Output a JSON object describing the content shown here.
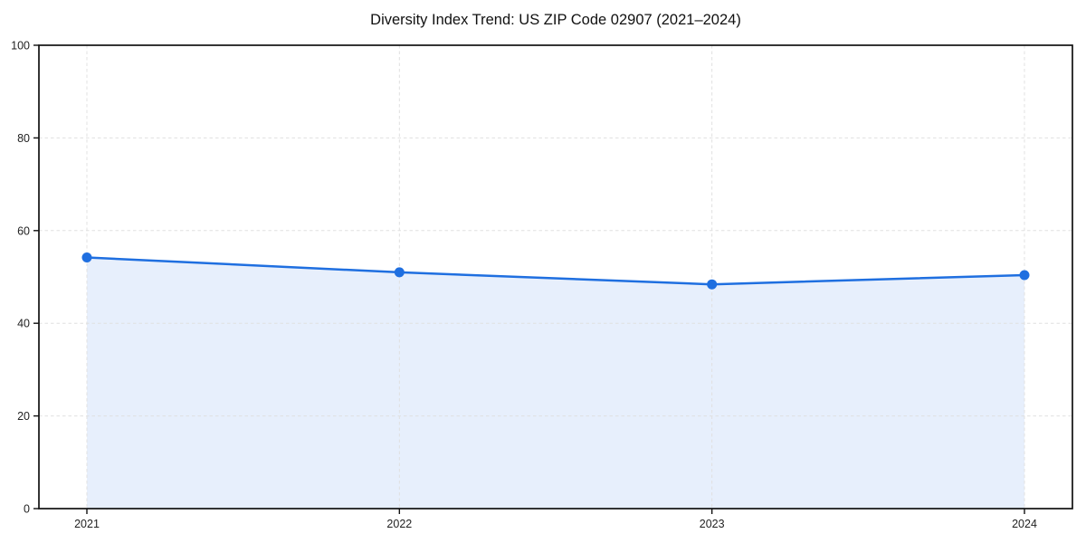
{
  "chart_data": {
    "type": "area",
    "title": "Diversity Index Trend: US ZIP Code 02907 (2021–2024)",
    "series_name": "Diversity Index",
    "x": [
      2021,
      2022,
      2023,
      2024
    ],
    "values": [
      54.2,
      51.0,
      48.4,
      50.4
    ],
    "xlabel": "",
    "ylabel": "",
    "ylim": [
      0,
      100
    ],
    "yticks": [
      0,
      20,
      40,
      60,
      80,
      100
    ],
    "grid": true,
    "grid_style": "dashed",
    "legend": false,
    "line_color": "#1f6fe0",
    "marker_color": "#1f6fe0",
    "fill_color": "#e7effc",
    "grid_color": "#e0e0e0",
    "axis_color": "#111111",
    "tick_label_color": "#222222",
    "title_color": "#111111",
    "background_color": "#ffffff"
  }
}
